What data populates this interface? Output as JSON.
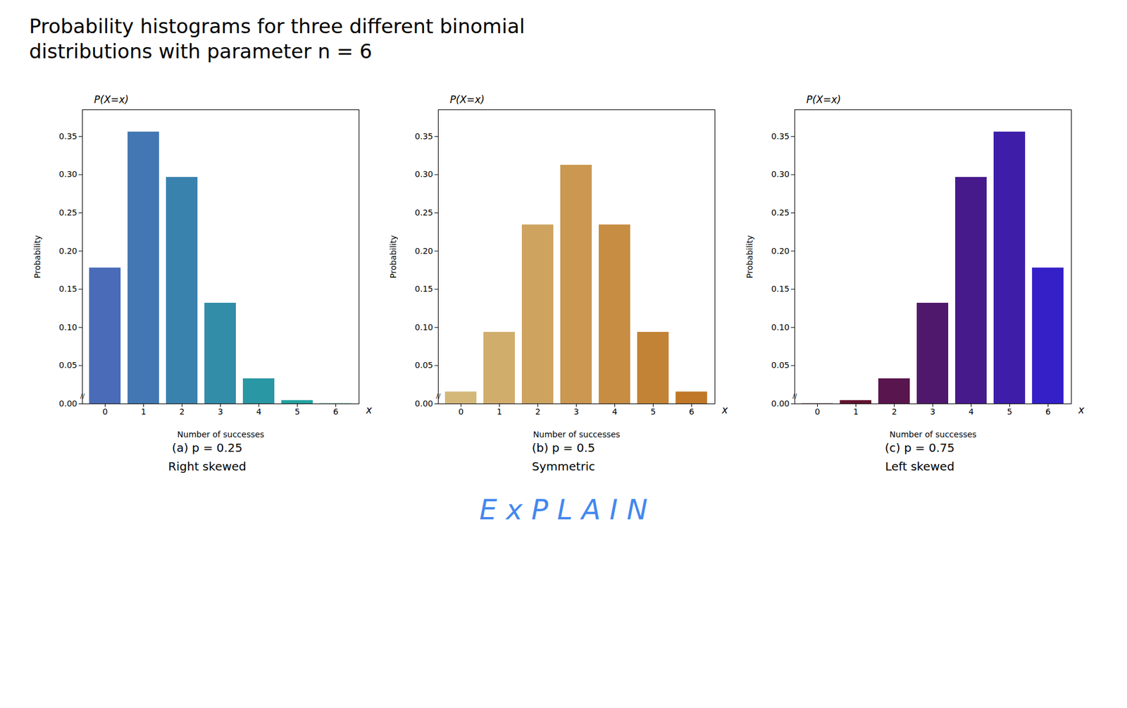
{
  "title": "Probability histograms for three different binomial\ndistributions with parameter n = 6",
  "annotations": [
    {
      "text": "E x P L A I N",
      "color": "#4488ee"
    }
  ],
  "chart_data": [
    {
      "type": "bar",
      "caption": [
        "(a)  p = 0.25",
        "Right skewed"
      ],
      "categories": [
        "0",
        "1",
        "2",
        "3",
        "4",
        "5",
        "6"
      ],
      "values": [
        0.17798,
        0.35596,
        0.29663,
        0.13184,
        0.03296,
        0.00439,
        0.00024
      ],
      "colors": [
        "#4a6cb8",
        "#4277b3",
        "#3a82ae",
        "#328da9",
        "#2a97a4",
        "#22a29f",
        "#1aad9a"
      ],
      "xlabel": "Number of successes",
      "ylabel": "Probability",
      "ylim": [
        0,
        0.385
      ],
      "yticks": [
        {
          "value": 0,
          "label": "0.00"
        },
        {
          "value": 0.05,
          "label": "0.05"
        },
        {
          "value": 0.1,
          "label": "0.10"
        },
        {
          "value": 0.15,
          "label": "0.15"
        },
        {
          "value": 0.2,
          "label": "0.20"
        },
        {
          "value": 0.25,
          "label": "0.25"
        },
        {
          "value": 0.3,
          "label": "0.30"
        },
        {
          "value": 0.35,
          "label": "0.35"
        }
      ],
      "grid": false,
      "annotations": [
        "P(X=x)",
        "x",
        "//"
      ]
    },
    {
      "type": "bar",
      "caption": [
        "(b)  p = 0.5",
        "Symmetric"
      ],
      "categories": [
        "0",
        "1",
        "2",
        "3",
        "4",
        "5",
        "6"
      ],
      "values": [
        0.01563,
        0.09375,
        0.23438,
        0.3125,
        0.23438,
        0.09375,
        0.01563
      ],
      "colors": [
        "#d4b87a",
        "#d1ad6c",
        "#cda35f",
        "#ca9851",
        "#c78d43",
        "#c38336",
        "#c07828"
      ],
      "xlabel": "Number of successes",
      "ylabel": "Probability",
      "ylim": [
        0,
        0.385
      ],
      "yticks": [
        {
          "value": 0,
          "label": "0.00"
        },
        {
          "value": 0.05,
          "label": "0.05"
        },
        {
          "value": 0.1,
          "label": "0.10"
        },
        {
          "value": 0.15,
          "label": "0.15"
        },
        {
          "value": 0.2,
          "label": "0.20"
        },
        {
          "value": 0.25,
          "label": "0.25"
        },
        {
          "value": 0.3,
          "label": "0.30"
        },
        {
          "value": 0.35,
          "label": "0.35"
        }
      ],
      "grid": false,
      "annotations": [
        "P(X=x)",
        "x",
        "//"
      ]
    },
    {
      "type": "bar",
      "caption": [
        "(c)  p = 0.75",
        "Left skewed"
      ],
      "categories": [
        "0",
        "1",
        "2",
        "3",
        "4",
        "5",
        "6"
      ],
      "values": [
        0.00024,
        0.00439,
        0.03296,
        0.13184,
        0.29663,
        0.35596,
        0.17798
      ],
      "colors": [
        "#6b0f10",
        "#62122f",
        "#59154d",
        "#50186c",
        "#471a8b",
        "#3e1da9",
        "#3520c8"
      ],
      "xlabel": "Number of successes",
      "ylabel": "Probability",
      "ylim": [
        0,
        0.385
      ],
      "yticks": [
        {
          "value": 0,
          "label": "0.00"
        },
        {
          "value": 0.05,
          "label": "0.05"
        },
        {
          "value": 0.1,
          "label": "0.10"
        },
        {
          "value": 0.15,
          "label": "0.15"
        },
        {
          "value": 0.2,
          "label": "0.20"
        },
        {
          "value": 0.25,
          "label": "0.25"
        },
        {
          "value": 0.3,
          "label": "0.30"
        },
        {
          "value": 0.35,
          "label": "0.35"
        }
      ],
      "grid": false,
      "annotations": [
        "P(X=x)",
        "x",
        "//"
      ]
    }
  ]
}
